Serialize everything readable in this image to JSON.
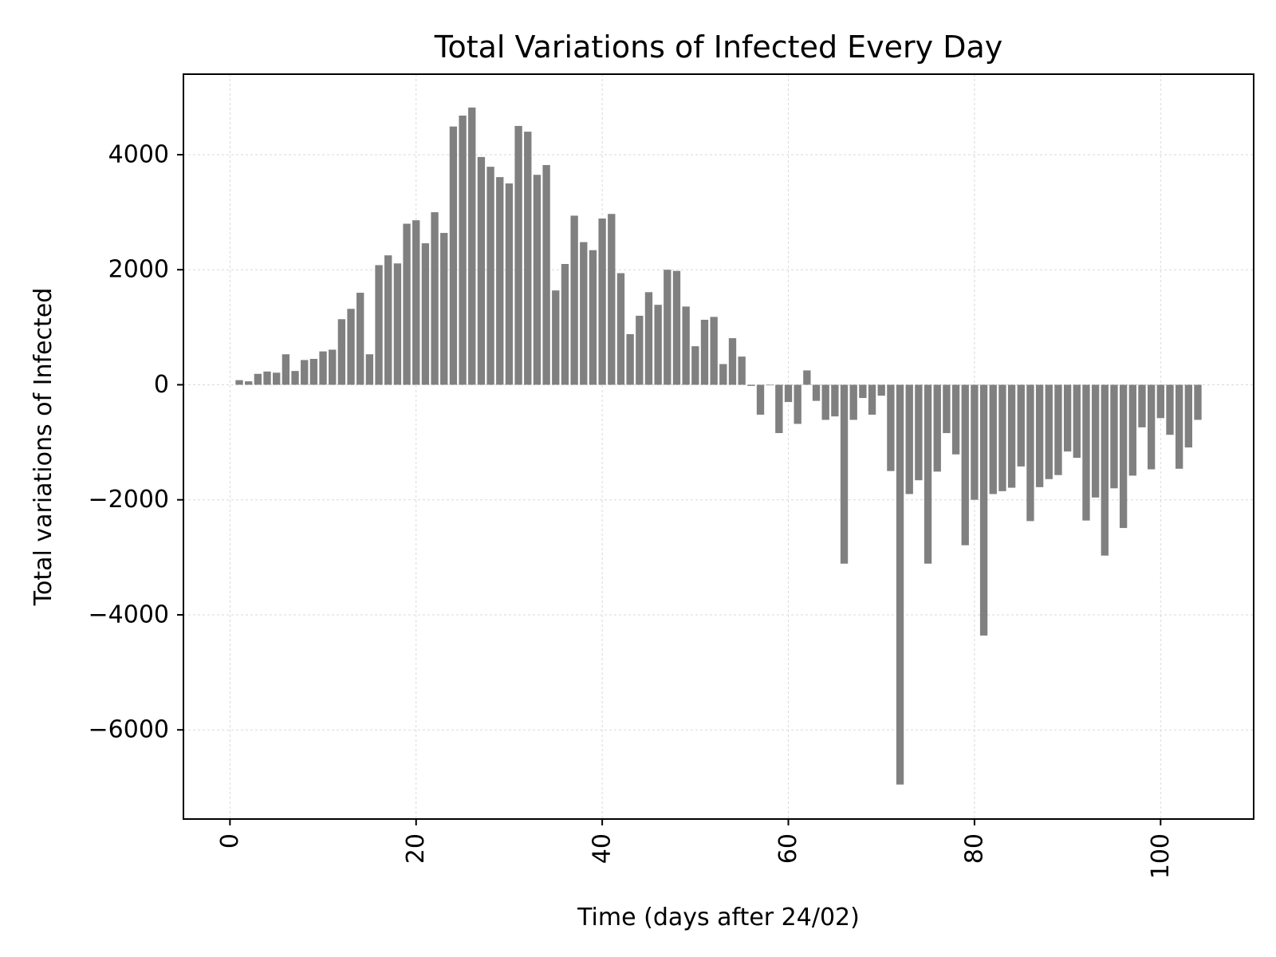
{
  "chart_data": {
    "type": "bar",
    "title": "Total Variations of Infected Every Day",
    "xlabel": "Time (days after 24/02)",
    "ylabel": "Total variations of Infected",
    "xlim": [
      -5,
      110
    ],
    "ylim": [
      -7550,
      5400
    ],
    "x_ticks": [
      0,
      20,
      40,
      60,
      80,
      100
    ],
    "x_tick_labels": [
      "0",
      "20",
      "40",
      "60",
      "80",
      "100"
    ],
    "y_ticks": [
      4000,
      2000,
      0,
      -2000,
      -4000,
      -6000
    ],
    "y_tick_labels": [
      "4000",
      "2000",
      "0",
      "−2000",
      "−4000",
      "−6000"
    ],
    "grid": true,
    "bar_color": "#808080",
    "x": [
      1,
      2,
      3,
      4,
      5,
      6,
      7,
      8,
      9,
      10,
      11,
      12,
      13,
      14,
      15,
      16,
      17,
      18,
      19,
      20,
      21,
      22,
      23,
      24,
      25,
      26,
      27,
      28,
      29,
      30,
      31,
      32,
      33,
      34,
      35,
      36,
      37,
      38,
      39,
      40,
      41,
      42,
      43,
      44,
      45,
      46,
      47,
      48,
      49,
      50,
      51,
      52,
      53,
      54,
      55,
      56,
      57,
      58,
      59,
      60,
      61,
      62,
      63,
      64,
      65,
      66,
      67,
      68,
      69,
      70,
      71,
      72,
      73,
      74,
      75,
      76,
      77,
      78,
      79,
      80,
      81,
      82,
      83,
      84,
      85,
      86,
      87,
      88,
      89,
      90,
      91,
      92,
      93,
      94,
      95,
      96,
      97,
      98,
      99,
      100,
      101,
      102,
      103,
      104
    ],
    "values": [
      80,
      60,
      190,
      230,
      210,
      530,
      240,
      430,
      450,
      580,
      610,
      1140,
      1320,
      1600,
      530,
      2080,
      2250,
      2110,
      2800,
      2860,
      2460,
      3000,
      2640,
      4490,
      4680,
      4820,
      3960,
      3790,
      3610,
      3500,
      4500,
      4400,
      3650,
      3820,
      1640,
      2100,
      2940,
      2480,
      2340,
      2890,
      2970,
      1940,
      880,
      1200,
      1610,
      1390,
      2000,
      1980,
      1360,
      670,
      1130,
      1180,
      360,
      810,
      490,
      -20,
      -520,
      -10,
      -840,
      -300,
      -680,
      250,
      -280,
      -610,
      -550,
      -3110,
      -610,
      -230,
      -520,
      -190,
      -1500,
      -6950,
      -1900,
      -1660,
      -3110,
      -1510,
      -840,
      -1210,
      -2790,
      -2000,
      -4360,
      -1900,
      -1850,
      -1790,
      -1420,
      -2370,
      -1780,
      -1640,
      -1570,
      -1160,
      -1270,
      -2360,
      -1960,
      -2970,
      -1800,
      -2490,
      -1580,
      -740,
      -1470,
      -580,
      -870,
      -1460,
      -1090,
      -610
    ]
  }
}
